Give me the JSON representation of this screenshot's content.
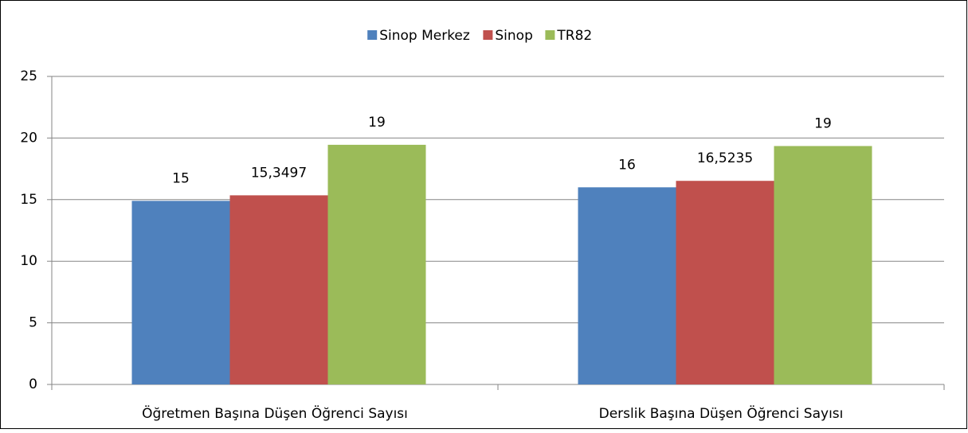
{
  "chart_data": {
    "type": "bar",
    "categories": [
      "Öğretmen Başına Düşen Öğrenci Sayısı",
      "Derslik Başına Düşen Öğrenci Sayısı"
    ],
    "series": [
      {
        "name": "Sinop Merkez",
        "color": "#4f81bd",
        "values": [
          14.9,
          16
        ],
        "value_labels": [
          "15",
          "16"
        ]
      },
      {
        "name": "Sinop",
        "color": "#c0504d",
        "values": [
          15.3497,
          16.5235
        ],
        "value_labels": [
          "15,3497",
          "16,5235"
        ]
      },
      {
        "name": "TR82",
        "color": "#9bbb59",
        "values": [
          19.45,
          19.35
        ],
        "value_labels": [
          "19",
          "19"
        ]
      }
    ],
    "ylim": [
      0,
      25
    ],
    "yticks": [
      0,
      5,
      10,
      15,
      20,
      25
    ],
    "grid": true,
    "legend": "top"
  }
}
